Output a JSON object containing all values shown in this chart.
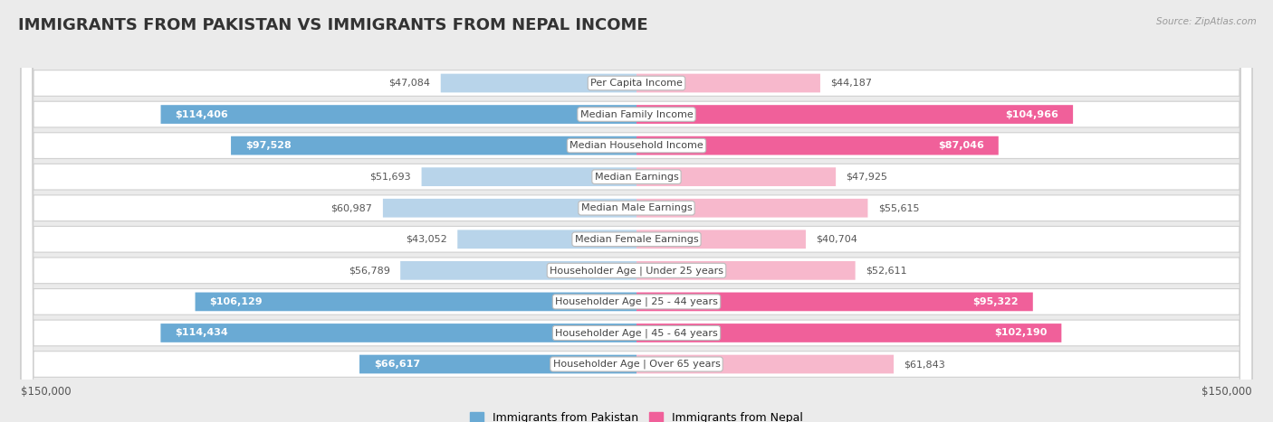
{
  "title": "IMMIGRANTS FROM PAKISTAN VS IMMIGRANTS FROM NEPAL INCOME",
  "source": "Source: ZipAtlas.com",
  "categories": [
    "Per Capita Income",
    "Median Family Income",
    "Median Household Income",
    "Median Earnings",
    "Median Male Earnings",
    "Median Female Earnings",
    "Householder Age | Under 25 years",
    "Householder Age | 25 - 44 years",
    "Householder Age | 45 - 64 years",
    "Householder Age | Over 65 years"
  ],
  "pakistan_values": [
    47084,
    114406,
    97528,
    51693,
    60987,
    43052,
    56789,
    106129,
    114434,
    66617
  ],
  "nepal_values": [
    44187,
    104966,
    87046,
    47925,
    55615,
    40704,
    52611,
    95322,
    102190,
    61843
  ],
  "pakistan_color_light": "#b8d4ea",
  "pakistan_color_dark": "#6aaad4",
  "nepal_color_light": "#f7b8cc",
  "nepal_color_dark": "#f0609a",
  "max_value": 150000,
  "threshold_dark": 65000,
  "background_color": "#ebebeb",
  "row_bg_color": "#ffffff",
  "title_fontsize": 13,
  "label_fontsize": 8,
  "category_fontsize": 8,
  "legend_label_pakistan": "Immigrants from Pakistan",
  "legend_label_nepal": "Immigrants from Nepal",
  "legend_color_pakistan": "#6aaad4",
  "legend_color_nepal": "#f0609a"
}
